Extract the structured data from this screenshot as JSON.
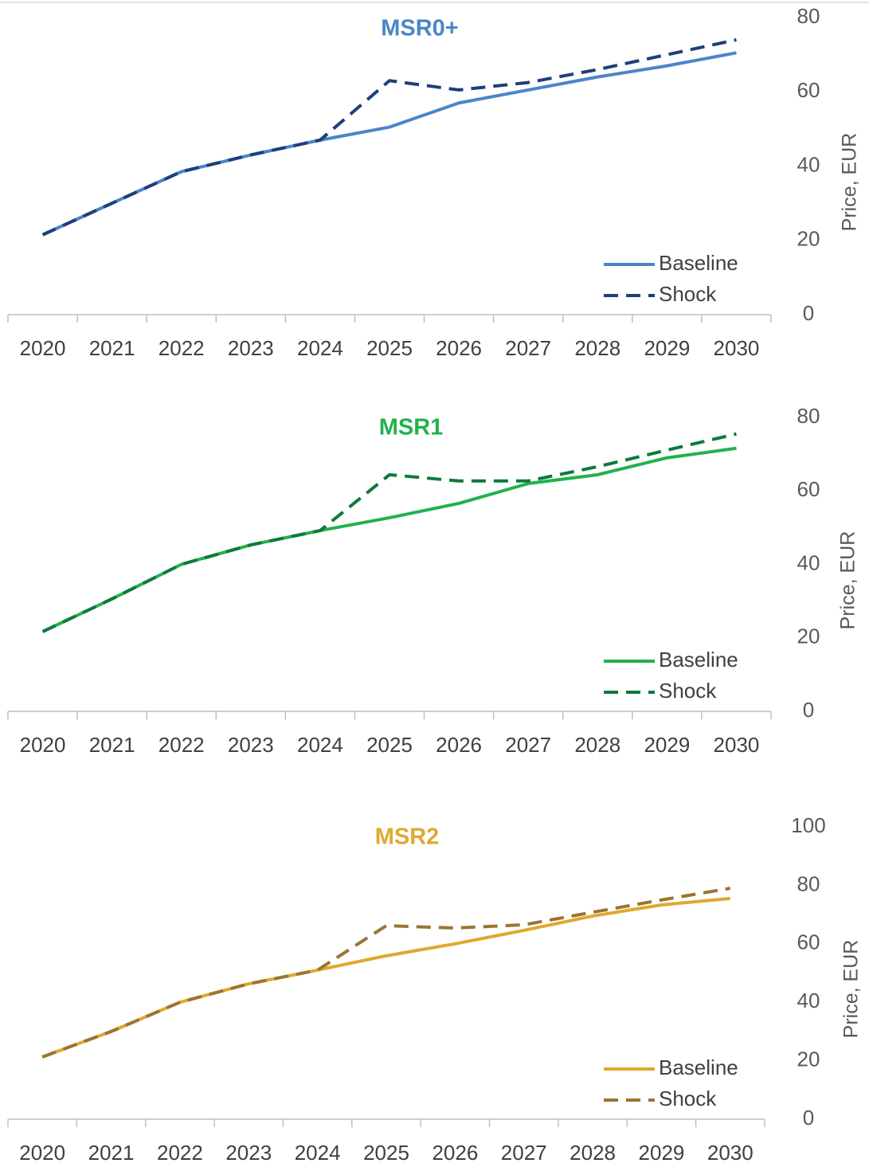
{
  "chart_data": [
    {
      "type": "line",
      "title": "MSR0+",
      "title_color": "#4a86c8",
      "y_label": "Price, EUR",
      "categories": [
        "2020",
        "2021",
        "2022",
        "2023",
        "2024",
        "2025",
        "2026",
        "2027",
        "2028",
        "2029",
        "2030"
      ],
      "series": [
        {
          "name": "Baseline",
          "color": "#4a86c8",
          "dashed": false,
          "values": [
            21.5,
            30,
            38.5,
            43,
            47,
            50.5,
            57,
            60.5,
            64,
            67,
            70.5
          ]
        },
        {
          "name": "Shock",
          "color": "#1f3f7a",
          "dashed": true,
          "values": [
            21.5,
            30,
            38.5,
            43,
            47,
            63,
            60.5,
            62.5,
            66,
            70,
            74
          ]
        }
      ],
      "ylim": [
        0,
        80
      ],
      "yticks": [
        0,
        20,
        40,
        60,
        80
      ],
      "grid": false,
      "legend": "lower right"
    },
    {
      "type": "line",
      "title": "MSR1",
      "title_color": "#22b14c",
      "y_label": "Price, EUR",
      "categories": [
        "2020",
        "2021",
        "2022",
        "2023",
        "2024",
        "2025",
        "2026",
        "2027",
        "2028",
        "2029",
        "2030"
      ],
      "series": [
        {
          "name": "Baseline",
          "color": "#22b14c",
          "dashed": false,
          "values": [
            21.7,
            30.6,
            40,
            45.3,
            49.2,
            52.7,
            56.6,
            62,
            64.4,
            69,
            71.6
          ]
        },
        {
          "name": "Shock",
          "color": "#0d7a3c",
          "dashed": true,
          "values": [
            21.7,
            30.6,
            40,
            45.3,
            49.2,
            64.4,
            62.7,
            62.7,
            66.6,
            71.1,
            75.5
          ]
        }
      ],
      "ylim": [
        0,
        80
      ],
      "yticks": [
        0,
        20,
        40,
        60,
        80
      ],
      "grid": false,
      "legend": "lower right"
    },
    {
      "type": "line",
      "title": "MSR2",
      "title_color": "#e0a82e",
      "y_label": "Price, EUR",
      "categories": [
        "2020",
        "2021",
        "2022",
        "2023",
        "2024",
        "2025",
        "2026",
        "2027",
        "2028",
        "2029",
        "2030"
      ],
      "series": [
        {
          "name": "Baseline",
          "color": "#e0a82e",
          "dashed": false,
          "values": [
            21.3,
            30,
            40,
            46.3,
            51,
            55.9,
            60,
            64.6,
            69.5,
            73.3,
            75.5
          ]
        },
        {
          "name": "Shock",
          "color": "#9a7532",
          "dashed": true,
          "values": [
            21.3,
            30,
            40,
            46.3,
            51,
            66.2,
            65.4,
            66.5,
            70.8,
            75,
            79
          ]
        }
      ],
      "ylim": [
        0,
        100
      ],
      "yticks": [
        0,
        20,
        40,
        60,
        80,
        100
      ],
      "grid": false,
      "legend": "lower right"
    }
  ]
}
